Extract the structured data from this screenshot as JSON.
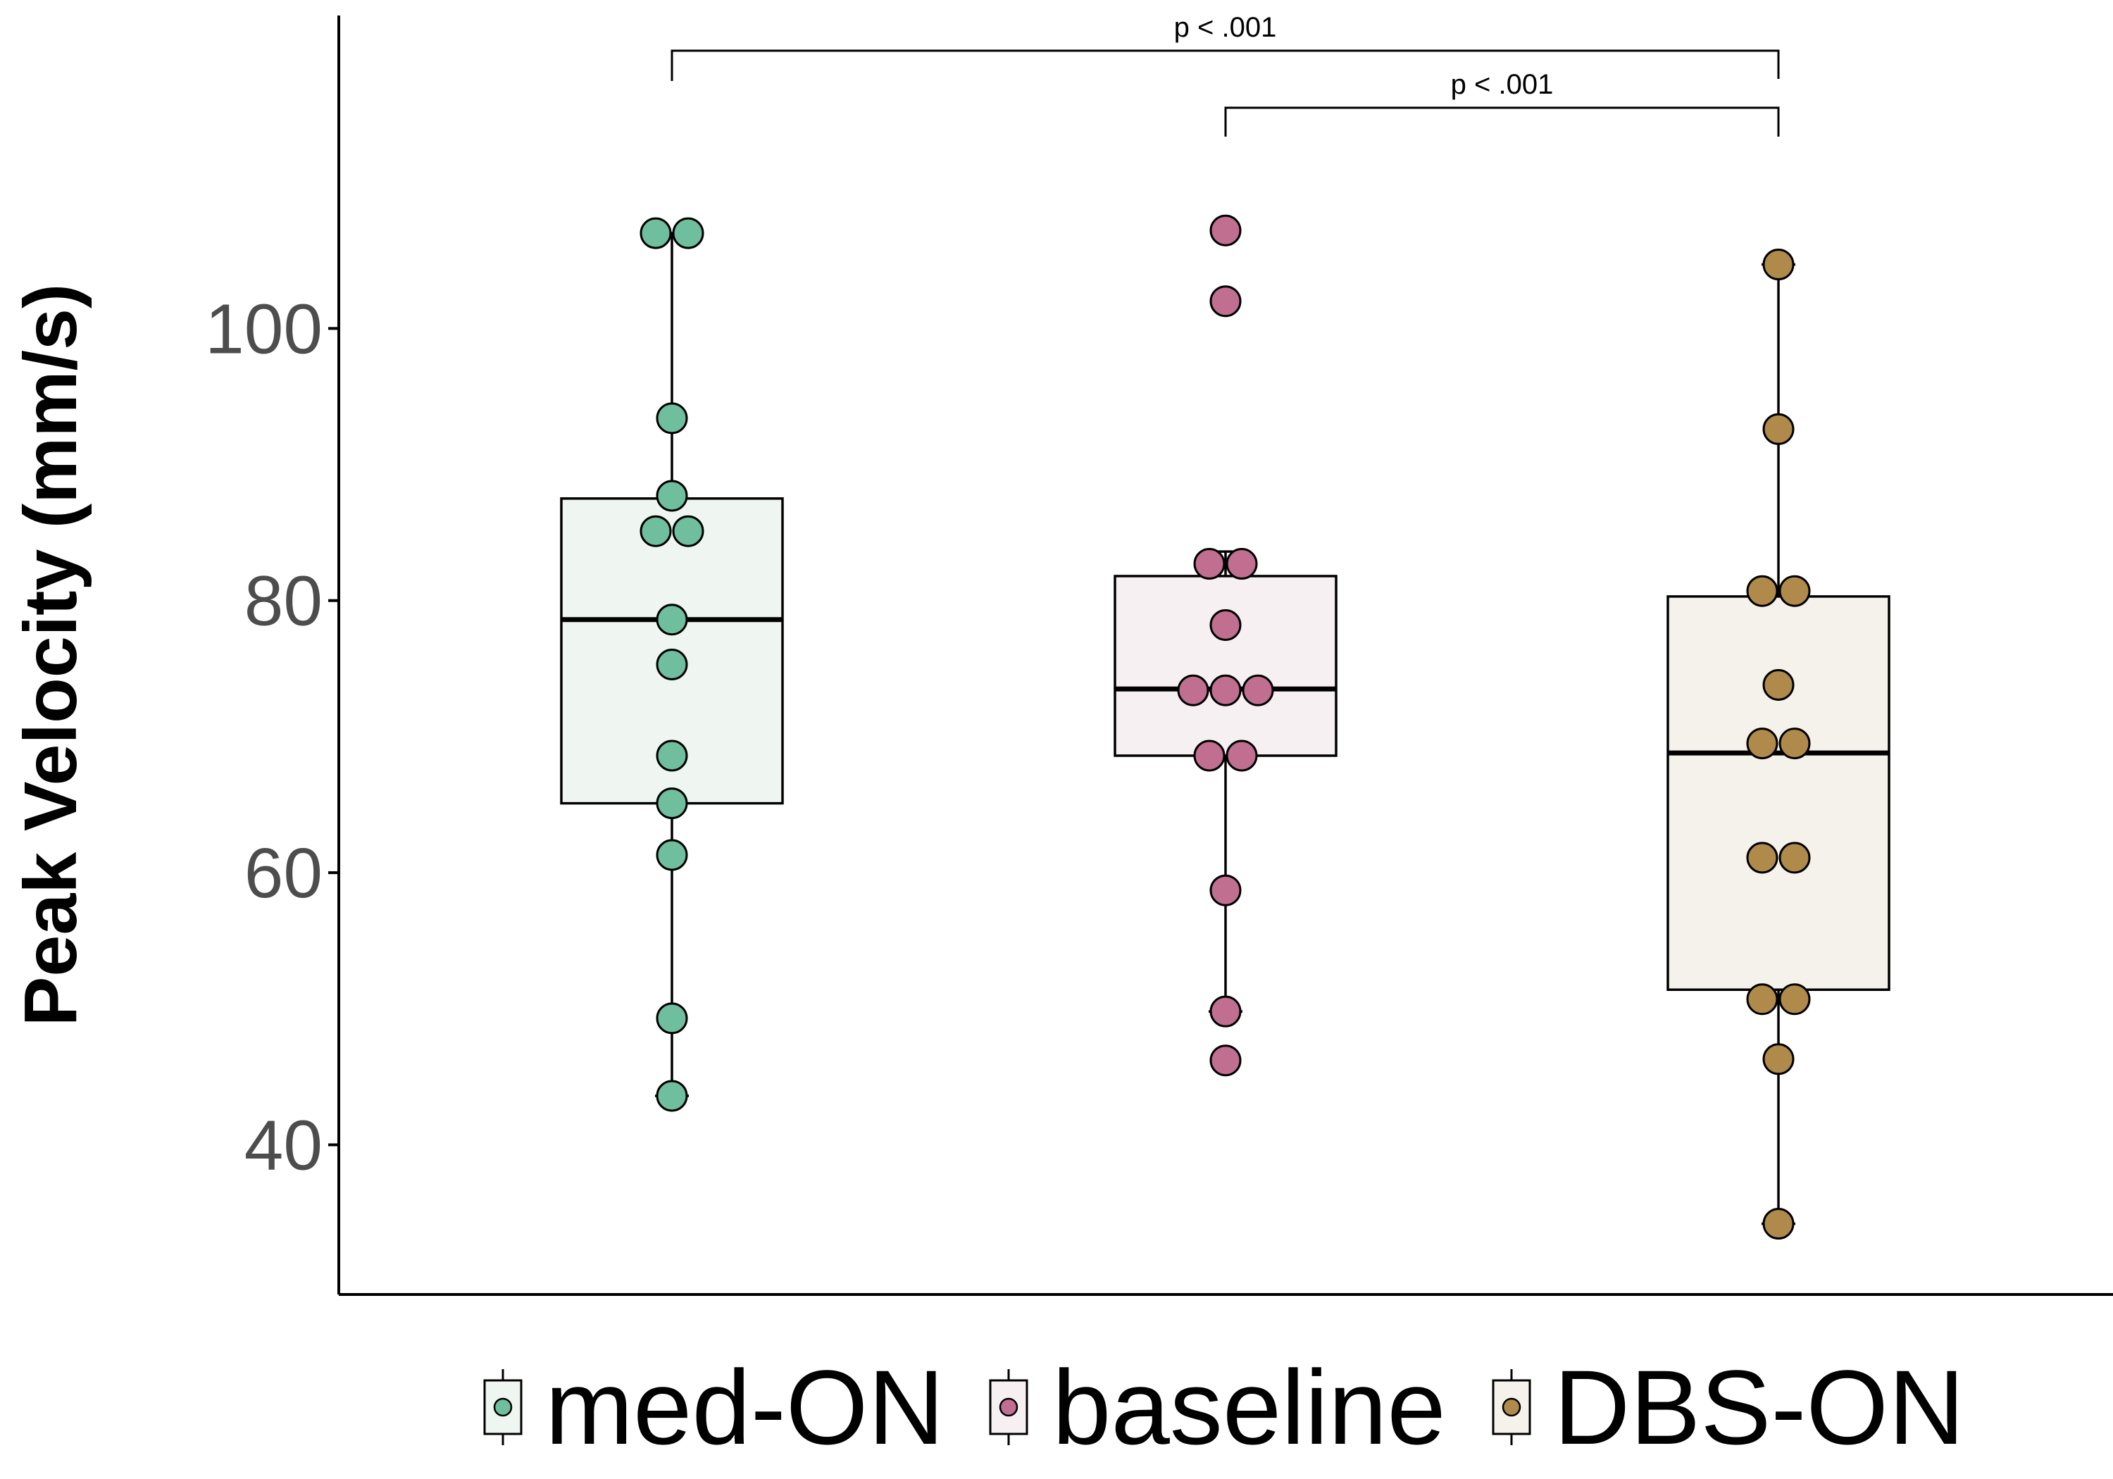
{
  "chart_data": {
    "type": "box",
    "ylabel": "Peak Velocity (mm/s)",
    "xlabel": "",
    "ylim": [
      29,
      123
    ],
    "yticks": [
      40,
      60,
      80,
      100
    ],
    "grid": false,
    "legend_position": "bottom",
    "groups": [
      {
        "name": "med-ON",
        "color": "#6fbf9f",
        "box_fill": "#eff6f2",
        "box": {
          "min": 43.6,
          "q1": 65.1,
          "median": 78.6,
          "q3": 87.5,
          "max": 107
        },
        "points": [
          107,
          107,
          93.4,
          87.7,
          85.1,
          85.1,
          78.6,
          75.3,
          68.6,
          65.1,
          61.3,
          49.3,
          43.6
        ]
      },
      {
        "name": "baseline",
        "color": "#c06f90",
        "box_fill": "#f6f0f2",
        "box": {
          "min": 49.8,
          "q1": 68.6,
          "median": 73.5,
          "q3": 81.8,
          "max": 83.6
        },
        "points": [
          107.2,
          102,
          82.7,
          82.7,
          78.2,
          73.4,
          73.4,
          73.4,
          68.6,
          68.6,
          58.7,
          49.8,
          46.2
        ]
      },
      {
        "name": "DBS-ON",
        "color": "#b08a4a",
        "box_fill": "#f4f2ea",
        "box": {
          "min": 34.2,
          "q1": 51.4,
          "median": 68.8,
          "q3": 80.3,
          "max": 104.7
        },
        "points": [
          104.7,
          92.6,
          80.7,
          80.7,
          73.8,
          69.5,
          69.5,
          61.1,
          61.1,
          50.7,
          50.7,
          46.3,
          34.2
        ]
      }
    ],
    "comparisons": [
      {
        "from": "med-ON",
        "to": "DBS-ON",
        "label": "p < .001"
      },
      {
        "from": "baseline",
        "to": "DBS-ON",
        "label": "p < .001"
      }
    ]
  }
}
